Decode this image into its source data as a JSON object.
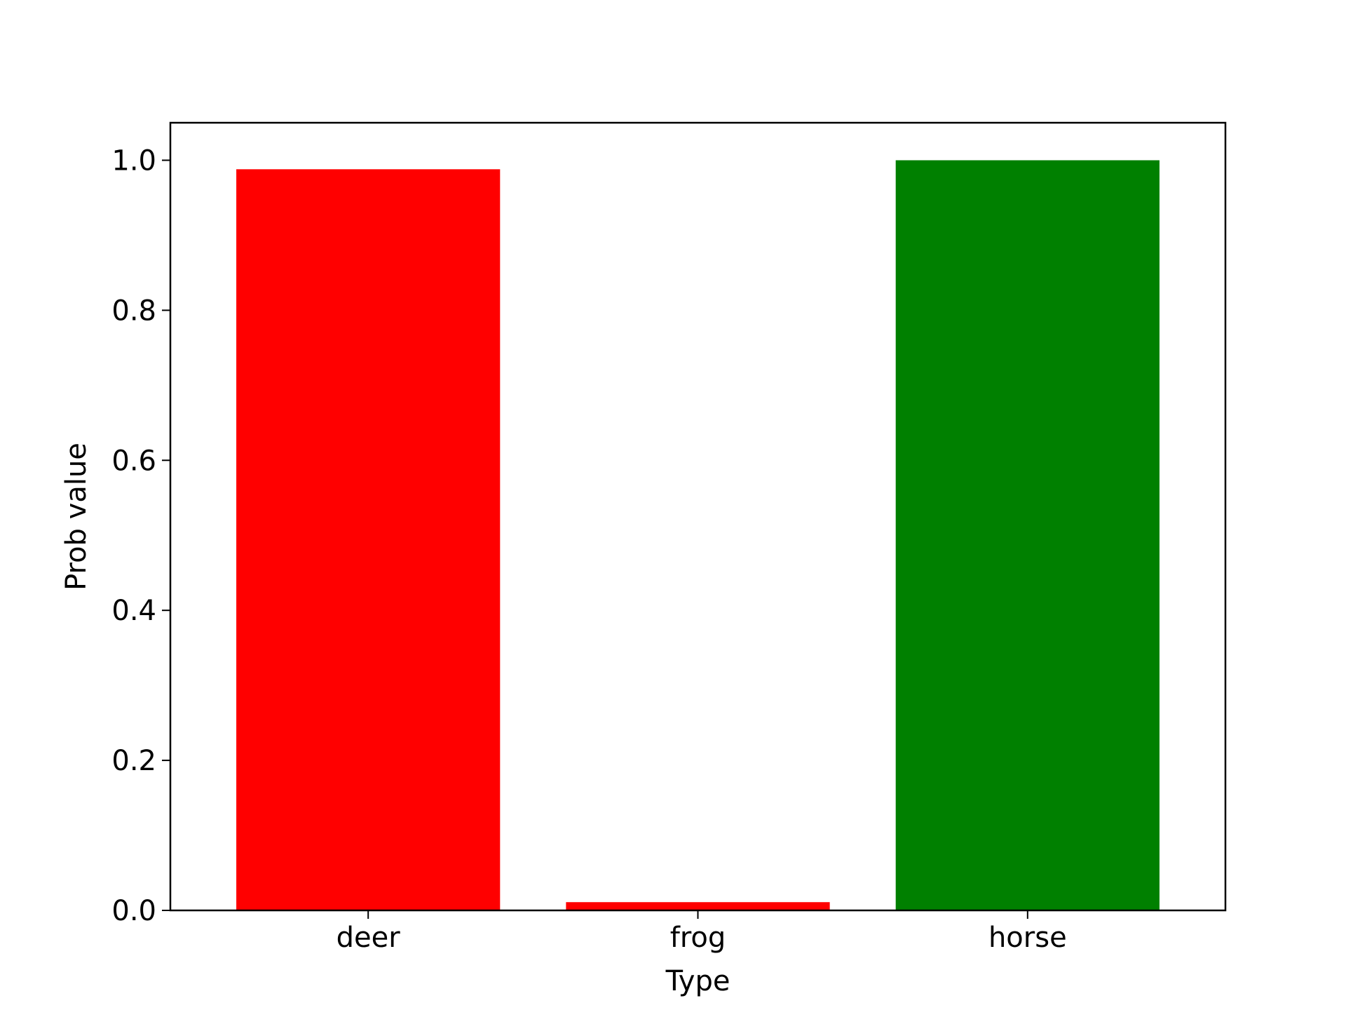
{
  "chart_data": {
    "type": "bar",
    "categories": [
      "deer",
      "frog",
      "horse"
    ],
    "values": [
      0.988,
      0.011,
      1.0
    ],
    "bar_colors": [
      "#ff0000",
      "#ff0000",
      "#008000"
    ],
    "title": "",
    "xlabel": "Type",
    "ylabel": "Prob value",
    "ylim": [
      0,
      1.05
    ],
    "yticks": [
      0.0,
      0.2,
      0.4,
      0.6,
      0.8,
      1.0
    ],
    "ytick_labels": [
      "0.0",
      "0.2",
      "0.4",
      "0.6",
      "0.8",
      "1.0"
    ],
    "grid": false,
    "legend": "none"
  }
}
